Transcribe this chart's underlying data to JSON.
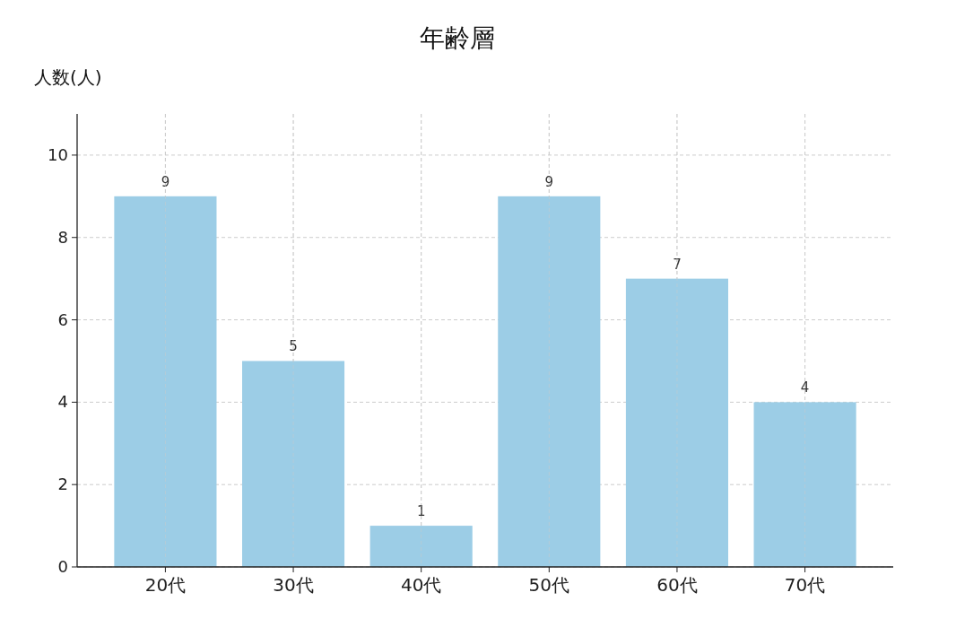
{
  "chart_data": {
    "type": "bar",
    "title": "年齢層",
    "ylabel": "人数(人)",
    "categories": [
      "20代",
      "30代",
      "40代",
      "50代",
      "60代",
      "70代"
    ],
    "values": [
      9,
      5,
      1,
      9,
      7,
      4
    ],
    "color": "#9ccde6",
    "ylim": [
      0,
      11
    ],
    "yticks": [
      0,
      2,
      4,
      6,
      8,
      10
    ],
    "grid": true,
    "data_labels": true
  }
}
